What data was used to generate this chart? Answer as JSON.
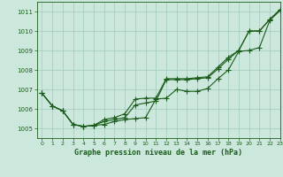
{
  "title": "Graphe pression niveau de la mer (hPa)",
  "background_color": "#cce8dc",
  "grid_color": "#a8cfc0",
  "line_color": "#1a5c1a",
  "xlim": [
    -0.5,
    23
  ],
  "ylim": [
    1004.5,
    1011.5
  ],
  "yticks": [
    1005,
    1006,
    1007,
    1008,
    1009,
    1010,
    1011
  ],
  "xticks": [
    0,
    1,
    2,
    3,
    4,
    5,
    6,
    7,
    8,
    9,
    10,
    11,
    12,
    13,
    14,
    15,
    16,
    17,
    18,
    19,
    20,
    21,
    22,
    23
  ],
  "series": [
    [
      1006.8,
      1006.15,
      1005.9,
      1005.2,
      1005.1,
      1005.15,
      1005.2,
      1005.35,
      1005.45,
      1005.5,
      1005.55,
      1006.5,
      1006.55,
      1007.0,
      1006.9,
      1006.9,
      1007.05,
      1007.55,
      1008.0,
      1008.95,
      1009.0,
      1009.15,
      1010.55,
      1011.05
    ],
    [
      1006.8,
      1006.15,
      1005.9,
      1005.2,
      1005.1,
      1005.15,
      1005.35,
      1005.45,
      1005.55,
      1006.2,
      1006.3,
      1006.4,
      1007.5,
      1007.5,
      1007.5,
      1007.55,
      1007.6,
      1008.05,
      1008.55,
      1009.0,
      1010.0,
      1010.0,
      1010.6,
      1011.1
    ],
    [
      1006.8,
      1006.15,
      1005.9,
      1005.2,
      1005.1,
      1005.15,
      1005.45,
      1005.55,
      1005.75,
      1006.5,
      1006.55,
      1006.55,
      1007.55,
      1007.55,
      1007.55,
      1007.6,
      1007.65,
      1008.15,
      1008.65,
      1009.0,
      1010.0,
      1010.0,
      1010.6,
      1011.1
    ]
  ]
}
